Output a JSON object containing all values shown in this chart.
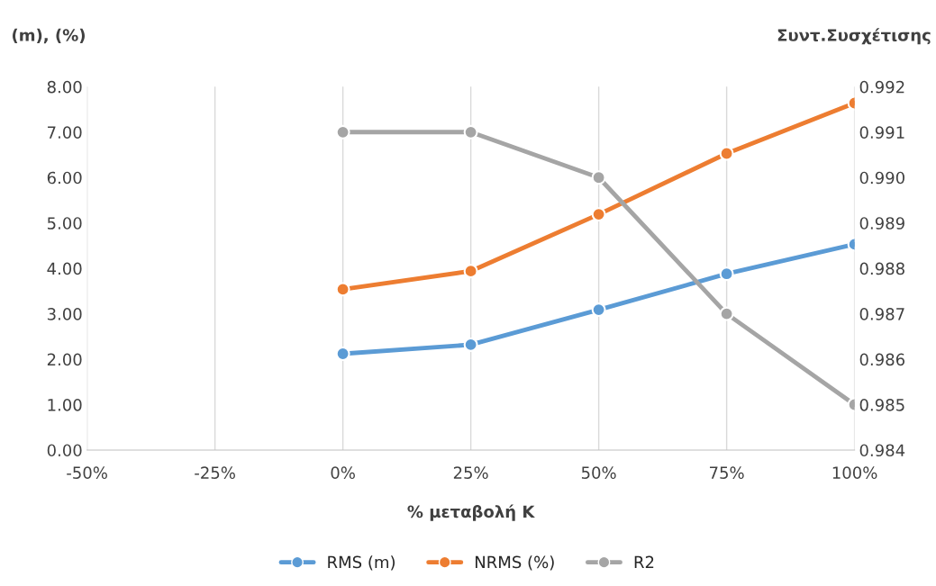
{
  "chart_data": {
    "type": "line",
    "xlabel": "% μεταβολή Κ",
    "ylabel": "(m), (%)",
    "y2label": "Συντ.Συσχέτισης",
    "x": [
      0,
      25,
      50,
      75,
      100
    ],
    "series": [
      {
        "name": "RMS (m)",
        "color": "#5b9bd5",
        "values": [
          2.12,
          2.32,
          3.09,
          3.88,
          4.53
        ]
      },
      {
        "name": "NRMS (%)",
        "color": "#ed7d31",
        "values": [
          3.54,
          3.94,
          5.19,
          6.53,
          7.64
        ]
      },
      {
        "name": "R2",
        "color": "#a5a5a5",
        "axis": "y2",
        "values": [
          0.991,
          0.991,
          0.99,
          0.987,
          0.985
        ]
      }
    ],
    "xlim": [
      -50,
      100
    ],
    "xticks": [
      {
        "value": -50,
        "label": "-50%"
      },
      {
        "value": -25,
        "label": "-25%"
      },
      {
        "value": 0,
        "label": "0%"
      },
      {
        "value": 25,
        "label": "25%"
      },
      {
        "value": 50,
        "label": "50%"
      },
      {
        "value": 75,
        "label": "75%"
      },
      {
        "value": 100,
        "label": "100%"
      }
    ],
    "ylim": [
      0,
      8
    ],
    "yticks": [
      {
        "value": 0,
        "label": "0.00"
      },
      {
        "value": 1,
        "label": "1.00"
      },
      {
        "value": 2,
        "label": "2.00"
      },
      {
        "value": 3,
        "label": "3.00"
      },
      {
        "value": 4,
        "label": "4.00"
      },
      {
        "value": 5,
        "label": "5.00"
      },
      {
        "value": 6,
        "label": "6.00"
      },
      {
        "value": 7,
        "label": "7.00"
      },
      {
        "value": 8,
        "label": "8.00"
      }
    ],
    "y2lim": [
      0.984,
      0.992
    ],
    "y2ticks": [
      0.984,
      0.985,
      0.986,
      0.987,
      0.988,
      0.989,
      {
        "value": 0.99,
        "label": "0.990"
      },
      0.991,
      0.992
    ],
    "grid": "x",
    "legend": "bottom",
    "marker": "circle",
    "line_style": "solid"
  }
}
